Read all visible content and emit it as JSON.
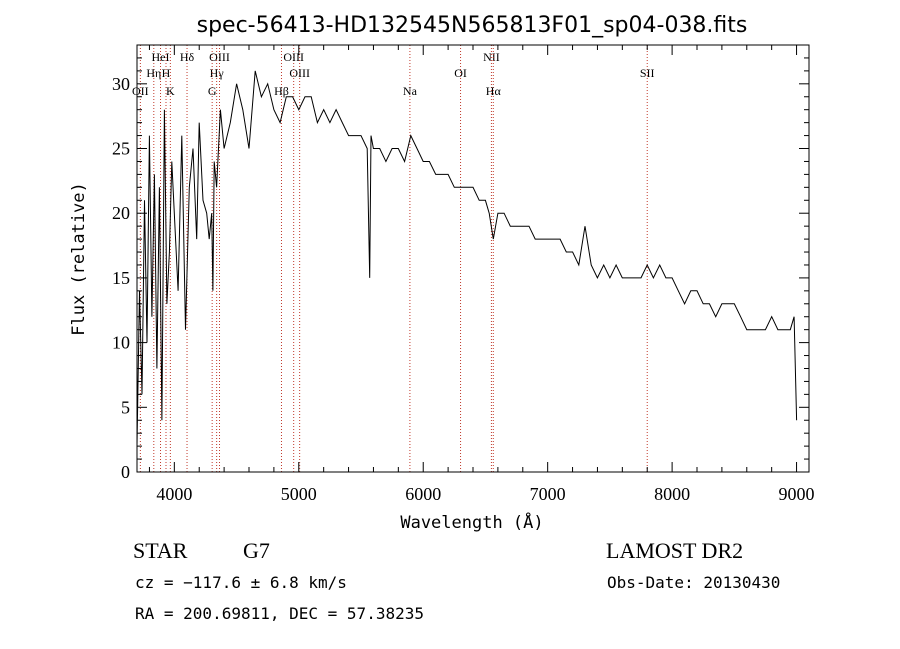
{
  "chart_data": {
    "type": "line",
    "title": "spec-56413-HD132545N565813F01_sp04-038.fits",
    "xlabel": "Wavelength (Å)",
    "ylabel": "Flux (relative)",
    "xlim": [
      3700,
      9100
    ],
    "ylim": [
      0,
      33
    ],
    "xticks": [
      4000,
      5000,
      6000,
      7000,
      8000,
      9000
    ],
    "yticks": [
      0,
      5,
      10,
      15,
      20,
      25,
      30
    ],
    "grid": false,
    "series": [
      {
        "x": [
          3700,
          3720,
          3740,
          3760,
          3780,
          3800,
          3820,
          3840,
          3860,
          3880,
          3900,
          3920,
          3940,
          3960,
          3980,
          4000,
          4030,
          4060,
          4090,
          4120,
          4150,
          4180,
          4200,
          4230,
          4260,
          4280,
          4300,
          4310,
          4320,
          4340,
          4370,
          4400,
          4450,
          4500,
          4550,
          4600,
          4650,
          4700,
          4750,
          4800,
          4850,
          4900,
          4950,
          5000,
          5050,
          5100,
          5150,
          5200,
          5250,
          5300,
          5350,
          5400,
          5450,
          5500,
          5550,
          5570,
          5580,
          5600,
          5650,
          5700,
          5750,
          5800,
          5850,
          5900,
          5950,
          6000,
          6050,
          6100,
          6150,
          6200,
          6250,
          6300,
          6350,
          6400,
          6450,
          6500,
          6530,
          6563,
          6600,
          6650,
          6700,
          6750,
          6800,
          6850,
          6900,
          6950,
          7000,
          7050,
          7100,
          7150,
          7200,
          7250,
          7300,
          7350,
          7400,
          7450,
          7500,
          7550,
          7600,
          7650,
          7700,
          7750,
          7800,
          7850,
          7900,
          7950,
          8000,
          8050,
          8100,
          8150,
          8200,
          8250,
          8300,
          8350,
          8400,
          8450,
          8500,
          8550,
          8600,
          8650,
          8700,
          8750,
          8800,
          8850,
          8900,
          8950,
          8980,
          9000
        ],
        "y": [
          2,
          14,
          6,
          21,
          10,
          26,
          12,
          23,
          8,
          22,
          4,
          28,
          13,
          17,
          24,
          20,
          14,
          26,
          11,
          22,
          25,
          18,
          27,
          21,
          20,
          18,
          20,
          14,
          24,
          22,
          28,
          25,
          27,
          30,
          28,
          25,
          31,
          29,
          30,
          28,
          27,
          29,
          29,
          28,
          29,
          29,
          27,
          28,
          27,
          28,
          27,
          26,
          26,
          26,
          25,
          15,
          26,
          25,
          25,
          24,
          25,
          25,
          24,
          26,
          25,
          24,
          24,
          23,
          23,
          23,
          22,
          22,
          22,
          22,
          21,
          21,
          20,
          18,
          20,
          20,
          19,
          19,
          19,
          19,
          18,
          18,
          18,
          18,
          18,
          17,
          17,
          16,
          19,
          16,
          15,
          16,
          15,
          16,
          15,
          15,
          15,
          15,
          16,
          15,
          16,
          15,
          15,
          14,
          13,
          14,
          14,
          13,
          13,
          12,
          13,
          13,
          13,
          12,
          11,
          11,
          11,
          11,
          12,
          11,
          11,
          11,
          12,
          4
        ]
      }
    ],
    "annotations": [
      {
        "text": "OII",
        "x": 3727,
        "tier": 3
      },
      {
        "text": "Hη",
        "x": 3835,
        "tier": 2
      },
      {
        "text": "HeI",
        "x": 3889,
        "tier": 1
      },
      {
        "text": "H",
        "x": 3933,
        "tier": 2
      },
      {
        "text": "K",
        "x": 3968,
        "tier": 3
      },
      {
        "text": "Hδ",
        "x": 4102,
        "tier": 1
      },
      {
        "text": "Hγ",
        "x": 4340,
        "tier": 2
      },
      {
        "text": "G",
        "x": 4304,
        "tier": 3
      },
      {
        "text": "OIII",
        "x": 4363,
        "tier": 1
      },
      {
        "text": "Hβ",
        "x": 4861,
        "tier": 3
      },
      {
        "text": "OIII",
        "x": 4959,
        "tier": 1
      },
      {
        "text": "OIII",
        "x": 5007,
        "tier": 2
      },
      {
        "text": "Na",
        "x": 5893,
        "tier": 3
      },
      {
        "text": "OI",
        "x": 6300,
        "tier": 2
      },
      {
        "text": "NII",
        "x": 6548,
        "tier": 1
      },
      {
        "text": "Hα",
        "x": 6563,
        "tier": 3
      },
      {
        "text": "SII",
        "x": 7800,
        "tier": 2
      }
    ],
    "line_color": "#000000",
    "marker_color": "#c0392b"
  },
  "info": {
    "object_class": "STAR",
    "subclass": "G7",
    "survey": "LAMOST DR2",
    "redshift": "cz = −117.6 ± 6.8 km/s",
    "obs_date": "Obs-Date: 20130430",
    "coords": "RA = 200.69811, DEC =  57.38235"
  }
}
